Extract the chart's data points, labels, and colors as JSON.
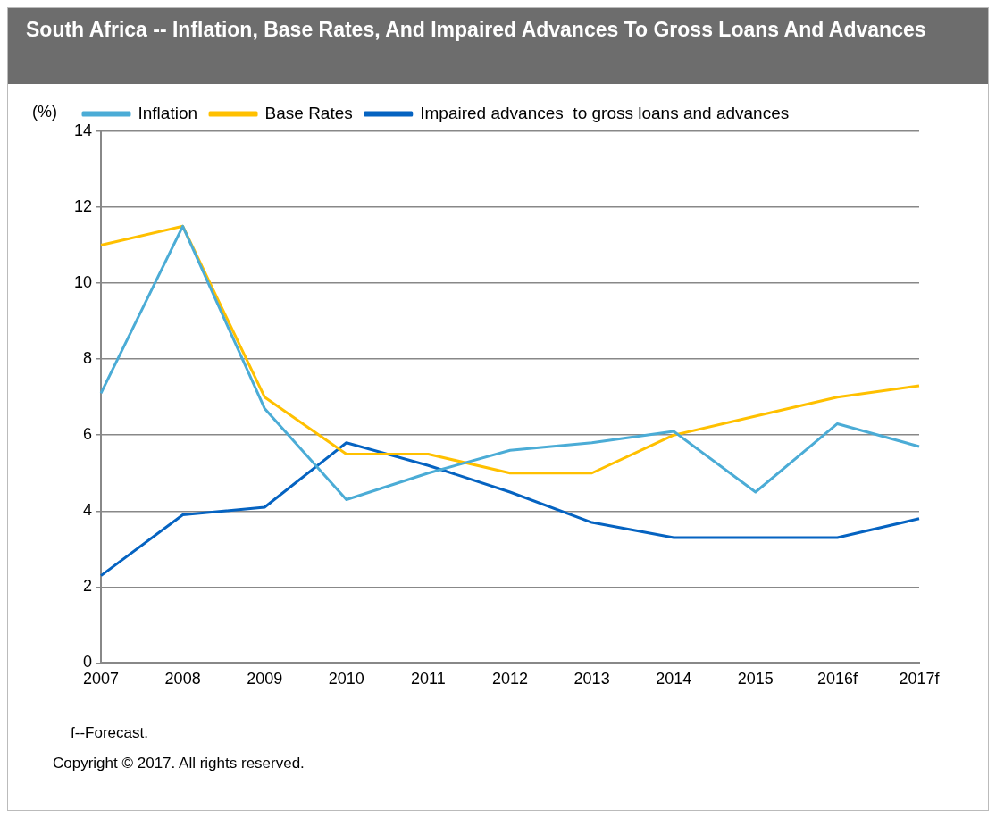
{
  "chart_data": {
    "type": "line",
    "title": "South Africa -- Inflation, Base Rates, And Impaired Advances To Gross Loans And Advances",
    "ylabel": "(%)",
    "categories": [
      "2007",
      "2008",
      "2009",
      "2010",
      "2011",
      "2012",
      "2013",
      "2014",
      "2015",
      "2016f",
      "2017f"
    ],
    "series": [
      {
        "name": "Inflation",
        "color": "#4bacd6",
        "values": [
          7.1,
          11.5,
          6.7,
          4.3,
          5.0,
          5.6,
          5.8,
          6.1,
          4.5,
          6.3,
          5.7
        ]
      },
      {
        "name": "Base Rates",
        "color": "#ffc000",
        "values": [
          11.0,
          11.5,
          7.0,
          5.5,
          5.5,
          5.0,
          5.0,
          6.0,
          6.5,
          7.0,
          7.3
        ]
      },
      {
        "name": "Impaired advances  to gross loans and advances",
        "color": "#0563c1",
        "values": [
          2.3,
          3.9,
          4.1,
          5.8,
          5.2,
          4.5,
          3.7,
          3.3,
          3.3,
          3.3,
          3.8
        ]
      }
    ],
    "ylim": [
      0,
      14
    ],
    "yticks": [
      0,
      2,
      4,
      6,
      8,
      10,
      12,
      14
    ],
    "grid": "y",
    "legend": "top",
    "marker": "none",
    "line_style": "solid",
    "annotations": [
      "f--Forecast.",
      "Copyright © 2017. All rights reserved."
    ]
  }
}
